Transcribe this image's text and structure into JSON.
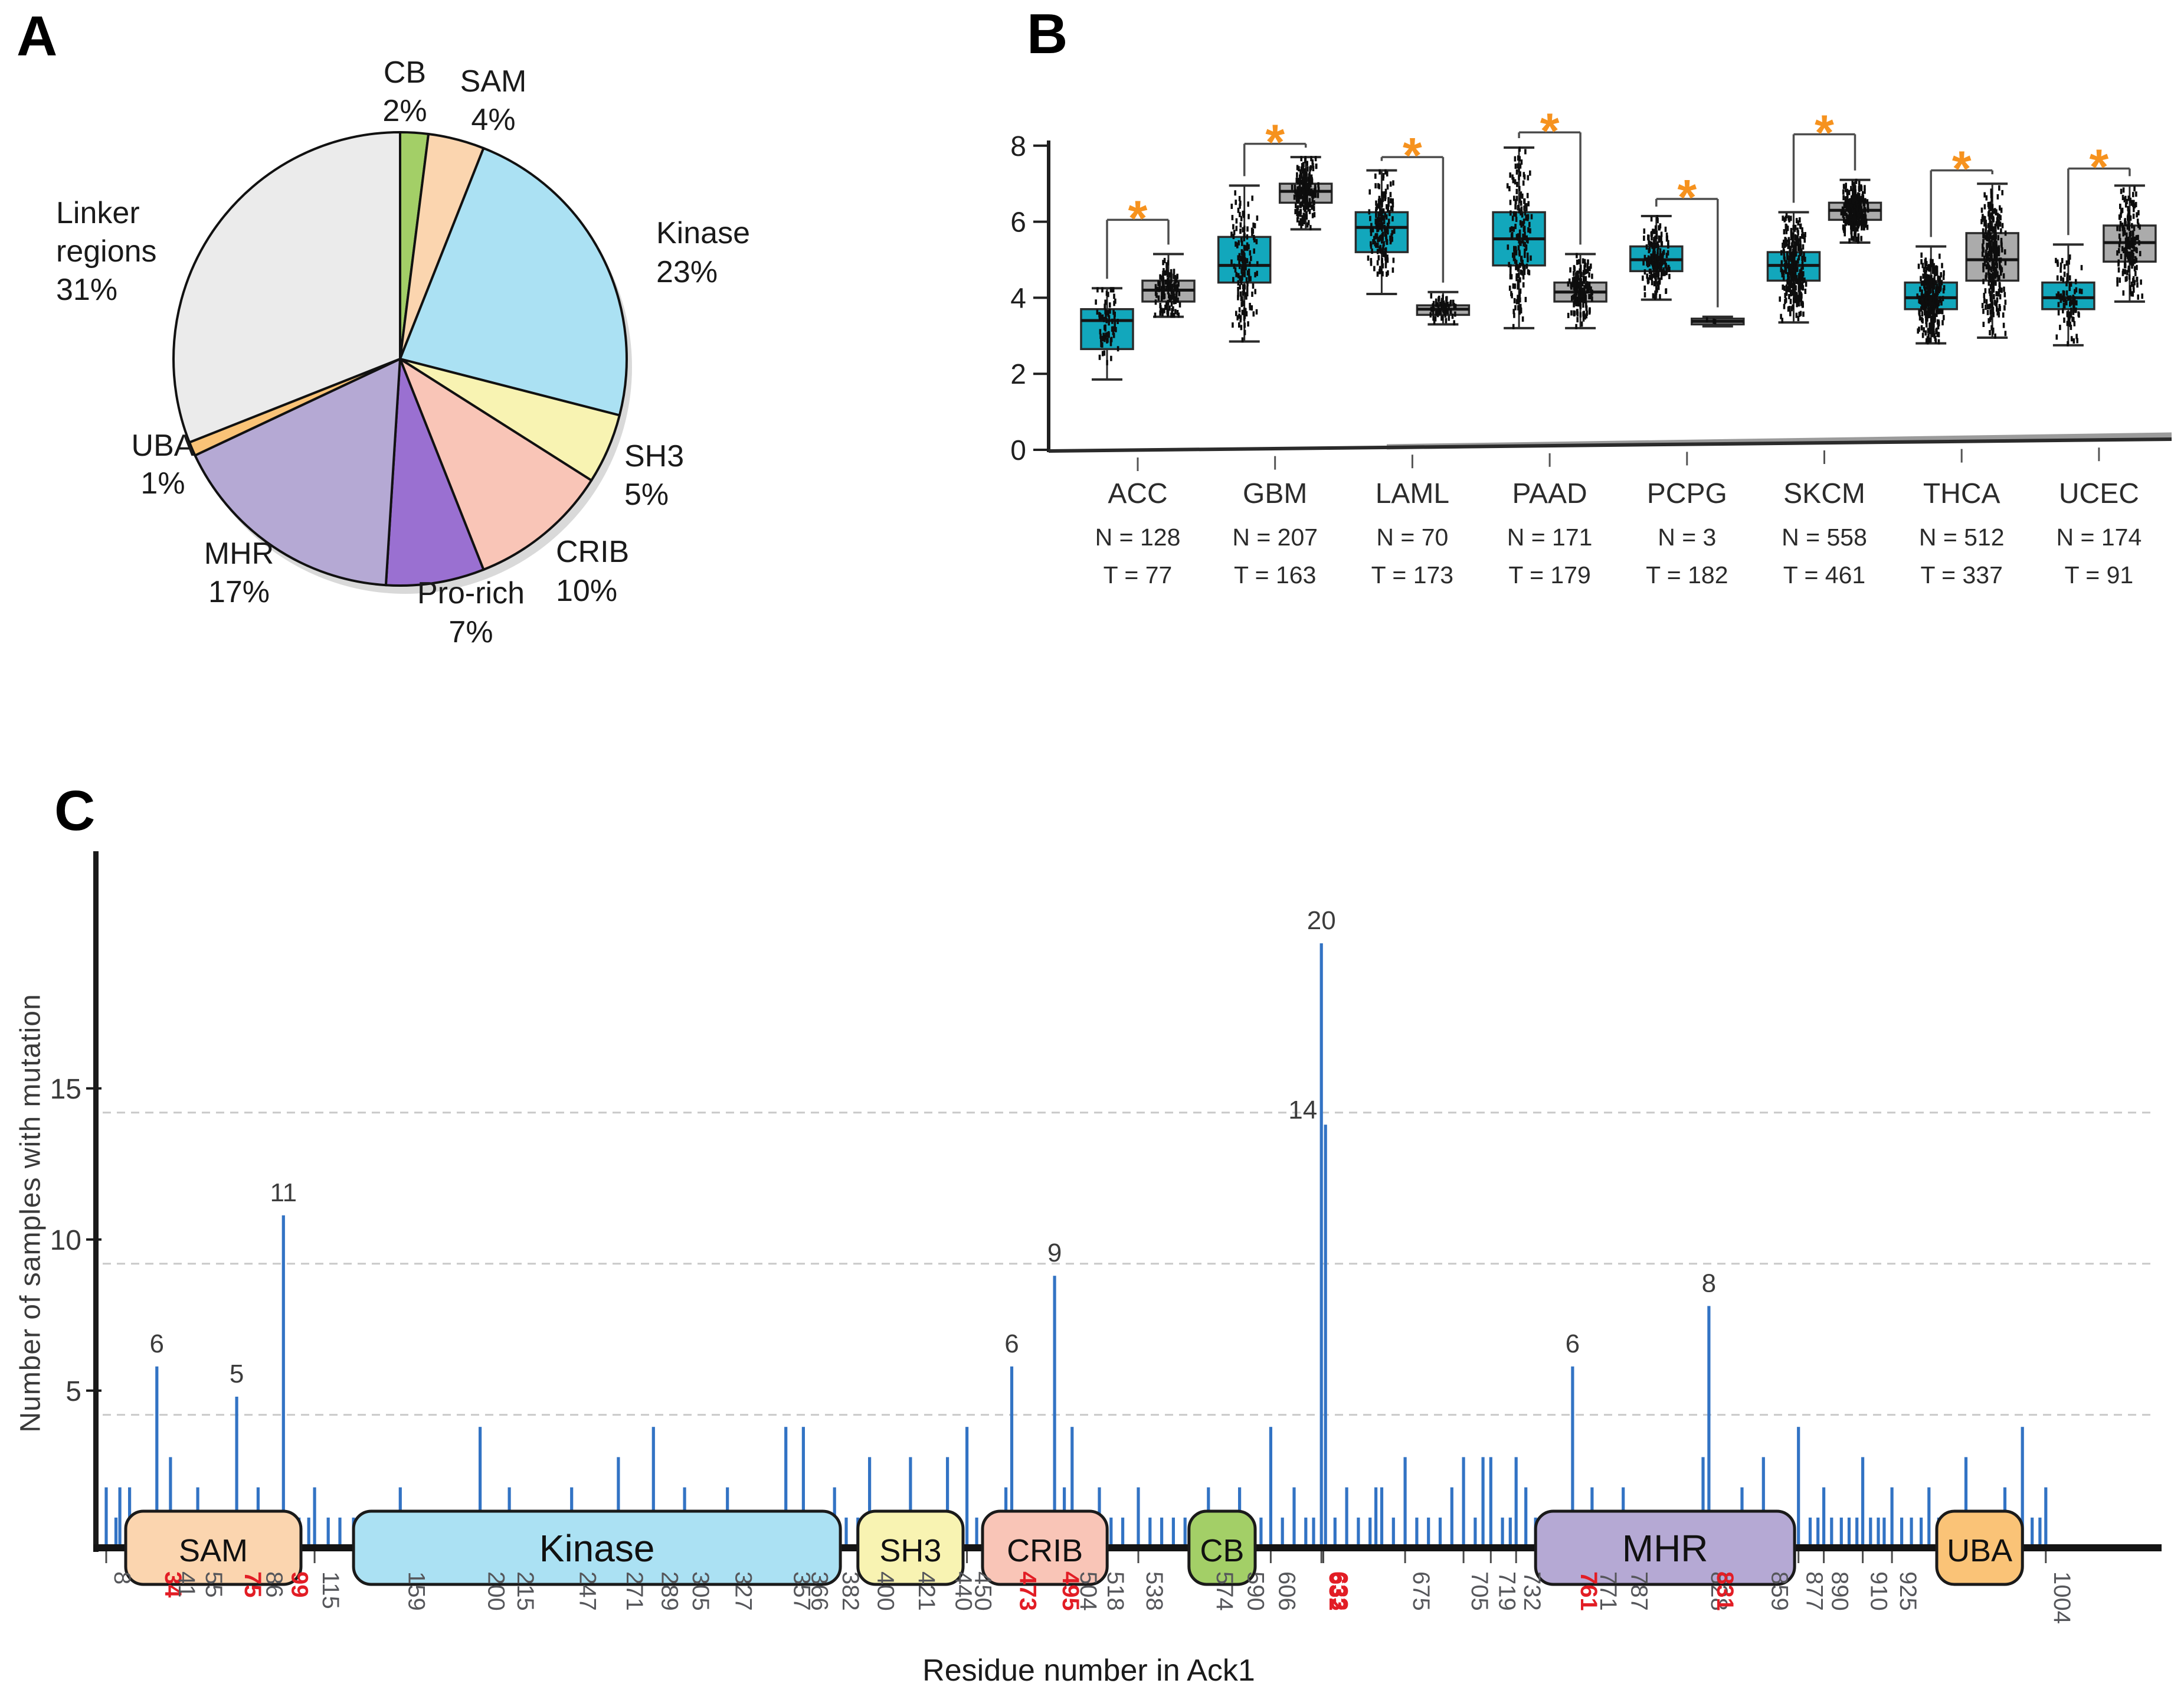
{
  "panels": {
    "a": {
      "letter": "A"
    },
    "b": {
      "letter": "B"
    },
    "c": {
      "letter": "C"
    }
  },
  "chart_data": [
    {
      "id": "ack1-domain-pie",
      "type": "pie",
      "direction": "clockwise-from-top",
      "slices": [
        {
          "label": "CB",
          "pct": 2,
          "color": "#a3cf67"
        },
        {
          "label": "SAM",
          "pct": 4,
          "color": "#fbd5af"
        },
        {
          "label": "Kinase",
          "pct": 23,
          "color": "#abe1f3"
        },
        {
          "label": "SH3",
          "pct": 5,
          "color": "#f8f3b2"
        },
        {
          "label": "CRIB",
          "pct": 10,
          "color": "#f9c5b7"
        },
        {
          "label": "Pro-rich",
          "pct": 7,
          "color": "#9a70d1"
        },
        {
          "label": "MHR",
          "pct": 17,
          "color": "#b5a9d4"
        },
        {
          "label": "UBA",
          "pct": 1,
          "color": "#fac377"
        },
        {
          "label": "Linker regions",
          "pct": 31,
          "color": "#ebebeb"
        }
      ]
    },
    {
      "id": "ack1-expression-boxplot",
      "type": "box",
      "ylim": [
        0,
        8
      ],
      "yticks": [
        0,
        2,
        4,
        6,
        8
      ],
      "tumor_color": "#12a7bc",
      "normal_color": "#ababab",
      "significance_color": "#f6921e",
      "significance_symbol": "*",
      "groups": [
        {
          "label": "ACC",
          "normal_label": "N = 128",
          "tumor_label": "T = 77",
          "normal_n": 128,
          "tumor_n": 77,
          "tumor": {
            "whisker_low": 1.85,
            "q1": 2.65,
            "median": 3.4,
            "q3": 3.7,
            "whisker_high": 4.25
          },
          "normal": {
            "whisker_low": 3.5,
            "q1": 3.9,
            "median": 4.2,
            "q3": 4.45,
            "whisker_high": 5.15
          },
          "bracket_y": 6.05
        },
        {
          "label": "GBM",
          "normal_label": "N = 207",
          "tumor_label": "T = 163",
          "normal_n": 207,
          "tumor_n": 163,
          "tumor": {
            "whisker_low": 2.85,
            "q1": 4.4,
            "median": 4.85,
            "q3": 5.6,
            "whisker_high": 6.95
          },
          "normal": {
            "whisker_low": 5.8,
            "q1": 6.5,
            "median": 6.8,
            "q3": 7.0,
            "whisker_high": 7.7
          },
          "bracket_y": 8.05
        },
        {
          "label": "LAML",
          "normal_label": "N = 70",
          "tumor_label": "T = 173",
          "normal_n": 70,
          "tumor_n": 173,
          "tumor": {
            "whisker_low": 4.1,
            "q1": 5.2,
            "median": 5.85,
            "q3": 6.25,
            "whisker_high": 7.35
          },
          "normal": {
            "whisker_low": 3.3,
            "q1": 3.55,
            "median": 3.7,
            "q3": 3.8,
            "whisker_high": 4.15
          },
          "bracket_y": 7.7
        },
        {
          "label": "PAAD",
          "normal_label": "N = 171",
          "tumor_label": "T = 179",
          "normal_n": 171,
          "tumor_n": 179,
          "tumor": {
            "whisker_low": 3.2,
            "q1": 4.85,
            "median": 5.55,
            "q3": 6.25,
            "whisker_high": 7.95
          },
          "normal": {
            "whisker_low": 3.2,
            "q1": 3.9,
            "median": 4.15,
            "q3": 4.4,
            "whisker_high": 5.15
          },
          "bracket_y": 8.35
        },
        {
          "label": "PCPG",
          "normal_label": "N = 3",
          "tumor_label": "T = 182",
          "normal_n": 3,
          "tumor_n": 182,
          "tumor": {
            "whisker_low": 3.95,
            "q1": 4.7,
            "median": 5.0,
            "q3": 5.35,
            "whisker_high": 6.15
          },
          "normal": {
            "whisker_low": 3.25,
            "q1": 3.3,
            "median": 3.38,
            "q3": 3.45,
            "whisker_high": 3.5
          },
          "bracket_y": 6.6
        },
        {
          "label": "SKCM",
          "normal_label": "N = 558",
          "tumor_label": "T = 461",
          "normal_n": 558,
          "tumor_n": 461,
          "tumor": {
            "whisker_low": 3.35,
            "q1": 4.45,
            "median": 4.85,
            "q3": 5.2,
            "whisker_high": 6.25
          },
          "normal": {
            "whisker_low": 5.45,
            "q1": 6.05,
            "median": 6.3,
            "q3": 6.5,
            "whisker_high": 7.1
          },
          "bracket_y": 8.3
        },
        {
          "label": "THCA",
          "normal_label": "N = 512",
          "tumor_label": "T = 337",
          "normal_n": 512,
          "tumor_n": 337,
          "tumor": {
            "whisker_low": 2.8,
            "q1": 3.7,
            "median": 4.0,
            "q3": 4.4,
            "whisker_high": 5.35
          },
          "normal": {
            "whisker_low": 2.95,
            "q1": 4.45,
            "median": 5.0,
            "q3": 5.7,
            "whisker_high": 7.0
          },
          "bracket_y": 7.35
        },
        {
          "label": "UCEC",
          "normal_label": "N = 174",
          "tumor_label": "T = 91",
          "normal_n": 174,
          "tumor_n": 91,
          "tumor": {
            "whisker_low": 2.75,
            "q1": 3.7,
            "median": 4.0,
            "q3": 4.4,
            "whisker_high": 5.4
          },
          "normal": {
            "whisker_low": 3.9,
            "q1": 4.95,
            "median": 5.45,
            "q3": 5.9,
            "whisker_high": 6.95
          },
          "bracket_y": 7.4
        }
      ]
    },
    {
      "id": "ack1-mutation-lollipop",
      "type": "lollipop",
      "xlabel": "Residue number in Ack1",
      "ylabel": "Number of samples with mutation",
      "yticks": [
        5,
        10,
        15
      ],
      "gridlines": {
        "values": [
          4.4,
          9.4,
          14.4
        ],
        "style": "dashed"
      },
      "xlim": [
        1,
        1040
      ],
      "bar_color": "#3273c4",
      "tick_color": "#55565a",
      "highlight_tick_color": "#e21d25",
      "xticks": [
        {
          "r": 8
        },
        {
          "r": 34,
          "red": true
        },
        {
          "r": 41
        },
        {
          "r": 55
        },
        {
          "r": 75,
          "red": true
        },
        {
          "r": 86
        },
        {
          "r": 99,
          "red": true
        },
        {
          "r": 115
        },
        {
          "r": 159
        },
        {
          "r": 200
        },
        {
          "r": 215
        },
        {
          "r": 247
        },
        {
          "r": 271
        },
        {
          "r": 289
        },
        {
          "r": 305
        },
        {
          "r": 327
        },
        {
          "r": 357
        },
        {
          "r": 366
        },
        {
          "r": 382
        },
        {
          "r": 400
        },
        {
          "r": 421
        },
        {
          "r": 440
        },
        {
          "r": 450
        },
        {
          "r": 473,
          "red": true
        },
        {
          "r": 495,
          "red": true
        },
        {
          "r": 504
        },
        {
          "r": 518
        },
        {
          "r": 538
        },
        {
          "r": 574
        },
        {
          "r": 590
        },
        {
          "r": 606
        },
        {
          "r": 632,
          "red": true
        },
        {
          "r": 633,
          "red": true
        },
        {
          "r": 675
        },
        {
          "r": 705
        },
        {
          "r": 719
        },
        {
          "r": 732
        },
        {
          "r": 761,
          "red": true
        },
        {
          "r": 771
        },
        {
          "r": 787
        },
        {
          "r": 828
        },
        {
          "r": 831,
          "red": true
        },
        {
          "r": 859
        },
        {
          "r": 877
        },
        {
          "r": 890
        },
        {
          "r": 910
        },
        {
          "r": 925
        },
        {
          "r": 1004
        }
      ],
      "labeled_peaks": [
        [
          34,
          6
        ],
        [
          75,
          5
        ],
        [
          99,
          11
        ],
        [
          473,
          6
        ],
        [
          495,
          9
        ],
        [
          632,
          20
        ],
        [
          633,
          14
        ],
        [
          761,
          6
        ],
        [
          831,
          8
        ]
      ],
      "bars": [
        [
          8,
          2
        ],
        [
          13,
          1
        ],
        [
          15,
          2
        ],
        [
          20,
          2
        ],
        [
          24,
          1
        ],
        [
          28,
          1
        ],
        [
          34,
          6
        ],
        [
          37,
          1
        ],
        [
          41,
          3
        ],
        [
          44,
          1
        ],
        [
          48,
          1
        ],
        [
          51,
          1
        ],
        [
          55,
          2
        ],
        [
          58,
          1
        ],
        [
          62,
          1
        ],
        [
          66,
          1
        ],
        [
          70,
          1
        ],
        [
          75,
          5
        ],
        [
          79,
          1
        ],
        [
          83,
          1
        ],
        [
          86,
          2
        ],
        [
          90,
          1
        ],
        [
          95,
          1
        ],
        [
          99,
          11
        ],
        [
          103,
          1
        ],
        [
          107,
          1
        ],
        [
          112,
          1
        ],
        [
          115,
          2
        ],
        [
          122,
          1
        ],
        [
          128,
          1
        ],
        [
          135,
          1
        ],
        [
          142,
          1
        ],
        [
          150,
          1
        ],
        [
          155,
          1
        ],
        [
          159,
          2
        ],
        [
          165,
          1
        ],
        [
          172,
          1
        ],
        [
          178,
          1
        ],
        [
          185,
          1
        ],
        [
          192,
          1
        ],
        [
          200,
          4
        ],
        [
          207,
          1
        ],
        [
          215,
          2
        ],
        [
          221,
          1
        ],
        [
          228,
          1
        ],
        [
          235,
          1
        ],
        [
          241,
          1
        ],
        [
          247,
          2
        ],
        [
          253,
          1
        ],
        [
          260,
          1
        ],
        [
          266,
          1
        ],
        [
          271,
          3
        ],
        [
          277,
          1
        ],
        [
          283,
          1
        ],
        [
          289,
          4
        ],
        [
          296,
          1
        ],
        [
          301,
          1
        ],
        [
          305,
          2
        ],
        [
          311,
          1
        ],
        [
          318,
          1
        ],
        [
          322,
          1
        ],
        [
          327,
          2
        ],
        [
          333,
          1
        ],
        [
          340,
          1
        ],
        [
          347,
          1
        ],
        [
          352,
          1
        ],
        [
          357,
          4
        ],
        [
          362,
          1
        ],
        [
          366,
          4
        ],
        [
          371,
          1
        ],
        [
          376,
          1
        ],
        [
          382,
          2
        ],
        [
          388,
          1
        ],
        [
          394,
          1
        ],
        [
          400,
          3
        ],
        [
          406,
          1
        ],
        [
          411,
          1
        ],
        [
          416,
          1
        ],
        [
          421,
          3
        ],
        [
          427,
          1
        ],
        [
          433,
          1
        ],
        [
          440,
          3
        ],
        [
          445,
          1
        ],
        [
          450,
          4
        ],
        [
          455,
          1
        ],
        [
          460,
          1
        ],
        [
          465,
          1
        ],
        [
          470,
          2
        ],
        [
          473,
          6
        ],
        [
          478,
          1
        ],
        [
          483,
          1
        ],
        [
          488,
          1
        ],
        [
          492,
          1
        ],
        [
          495,
          9
        ],
        [
          500,
          2
        ],
        [
          504,
          4
        ],
        [
          509,
          1
        ],
        [
          514,
          1
        ],
        [
          518,
          2
        ],
        [
          524,
          1
        ],
        [
          530,
          1
        ],
        [
          538,
          2
        ],
        [
          544,
          1
        ],
        [
          550,
          1
        ],
        [
          556,
          1
        ],
        [
          562,
          1
        ],
        [
          568,
          1
        ],
        [
          574,
          2
        ],
        [
          580,
          1
        ],
        [
          585,
          1
        ],
        [
          590,
          2
        ],
        [
          596,
          1
        ],
        [
          601,
          1
        ],
        [
          606,
          4
        ],
        [
          612,
          1
        ],
        [
          618,
          2
        ],
        [
          624,
          1
        ],
        [
          628,
          1
        ],
        [
          632,
          20
        ],
        [
          633,
          14
        ],
        [
          639,
          1
        ],
        [
          645,
          2
        ],
        [
          651,
          1
        ],
        [
          657,
          1
        ],
        [
          660,
          2
        ],
        [
          663,
          2
        ],
        [
          669,
          1
        ],
        [
          675,
          3
        ],
        [
          681,
          1
        ],
        [
          687,
          1
        ],
        [
          693,
          1
        ],
        [
          699,
          2
        ],
        [
          705,
          3
        ],
        [
          711,
          1
        ],
        [
          715,
          3
        ],
        [
          719,
          3
        ],
        [
          725,
          1
        ],
        [
          729,
          1
        ],
        [
          732,
          3
        ],
        [
          737,
          2
        ],
        [
          742,
          1
        ],
        [
          748,
          1
        ],
        [
          754,
          1
        ],
        [
          761,
          6
        ],
        [
          766,
          1
        ],
        [
          771,
          2
        ],
        [
          777,
          1
        ],
        [
          782,
          1
        ],
        [
          787,
          2
        ],
        [
          793,
          1
        ],
        [
          799,
          1
        ],
        [
          805,
          1
        ],
        [
          811,
          1
        ],
        [
          817,
          1
        ],
        [
          822,
          1
        ],
        [
          828,
          3
        ],
        [
          831,
          8
        ],
        [
          836,
          1
        ],
        [
          842,
          1
        ],
        [
          848,
          2
        ],
        [
          853,
          1
        ],
        [
          859,
          3
        ],
        [
          865,
          1
        ],
        [
          871,
          1
        ],
        [
          877,
          4
        ],
        [
          883,
          1
        ],
        [
          887,
          1
        ],
        [
          890,
          2
        ],
        [
          894,
          1
        ],
        [
          899,
          1
        ],
        [
          903,
          1
        ],
        [
          907,
          1
        ],
        [
          910,
          3
        ],
        [
          914,
          1
        ],
        [
          918,
          1
        ],
        [
          921,
          1
        ],
        [
          925,
          2
        ],
        [
          930,
          1
        ],
        [
          935,
          1
        ],
        [
          940,
          1
        ],
        [
          944,
          2
        ],
        [
          949,
          1
        ],
        [
          954,
          1
        ],
        [
          958,
          1
        ],
        [
          963,
          3
        ],
        [
          968,
          1
        ],
        [
          973,
          1
        ],
        [
          978,
          1
        ],
        [
          983,
          2
        ],
        [
          988,
          1
        ],
        [
          992,
          4
        ],
        [
          997,
          1
        ],
        [
          1001,
          1
        ],
        [
          1004,
          2
        ]
      ],
      "domains": [
        {
          "name": "SAM",
          "start": 18,
          "end": 108,
          "color": "#fbd5af",
          "big": false
        },
        {
          "name": "Kinase",
          "start": 135,
          "end": 385,
          "color": "#abe1f3",
          "big": true
        },
        {
          "name": "SH3",
          "start": 394,
          "end": 448,
          "color": "#f8f3b2",
          "big": false
        },
        {
          "name": "CRIB",
          "start": 458,
          "end": 522,
          "color": "#f9c5b7",
          "big": false
        },
        {
          "name": "CB",
          "start": 564,
          "end": 598,
          "color": "#a3cf67",
          "big": false
        },
        {
          "name": "MHR",
          "start": 742,
          "end": 875,
          "color": "#b5a9d4",
          "big": true
        },
        {
          "name": "UBA",
          "start": 948,
          "end": 992,
          "color": "#fac377",
          "big": false
        }
      ]
    }
  ]
}
